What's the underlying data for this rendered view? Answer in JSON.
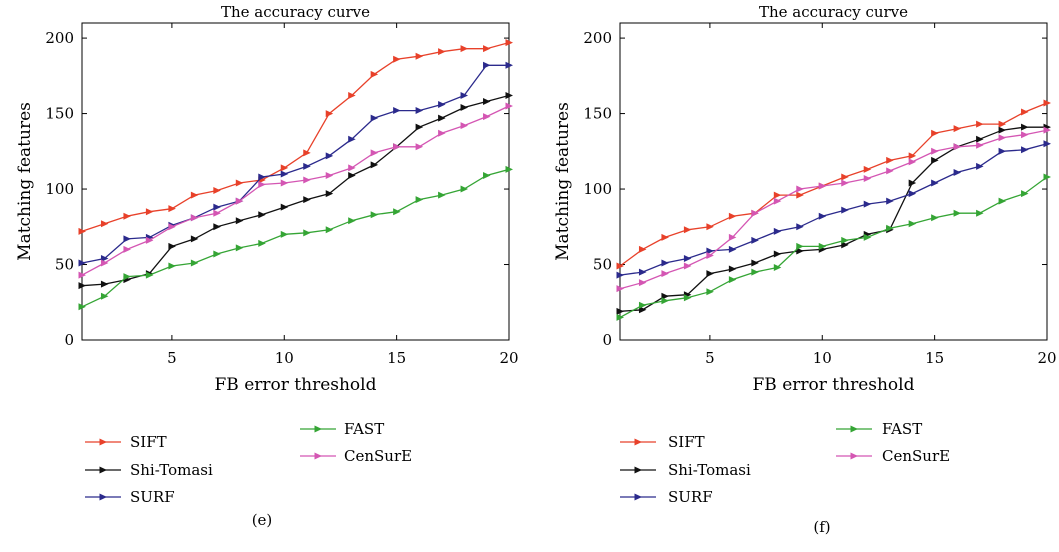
{
  "chart_data": [
    {
      "type": "line",
      "title": "The accuracy curve",
      "xlabel": "FB error threshold",
      "ylabel": "Matching features",
      "caption": "(e)",
      "xlim": [
        1,
        20
      ],
      "ylim": [
        0,
        210
      ],
      "xticks": [
        5,
        10,
        15,
        20
      ],
      "yticks": [
        0,
        50,
        100,
        150,
        200
      ],
      "legend": "below",
      "x": [
        1,
        2,
        3,
        4,
        5,
        6,
        7,
        8,
        9,
        10,
        11,
        12,
        13,
        14,
        15,
        16,
        17,
        18,
        19,
        20
      ],
      "series": [
        {
          "name": "SIFT",
          "color": "#e8412a",
          "values": [
            72,
            77,
            82,
            85,
            87,
            96,
            99,
            104,
            106,
            114,
            124,
            150,
            162,
            176,
            186,
            188,
            191,
            193,
            193,
            197
          ]
        },
        {
          "name": "Shi-Tomasi",
          "color": "#111111",
          "values": [
            36,
            37,
            40,
            44,
            62,
            67,
            75,
            79,
            83,
            88,
            93,
            97,
            109,
            116,
            128,
            141,
            147,
            154,
            158,
            162
          ]
        },
        {
          "name": "SURF",
          "color": "#2b2a8c",
          "values": [
            51,
            54,
            67,
            68,
            76,
            81,
            88,
            92,
            108,
            110,
            115,
            122,
            133,
            147,
            152,
            152,
            156,
            162,
            182,
            182
          ]
        },
        {
          "name": "FAST",
          "color": "#35a535",
          "values": [
            22,
            29,
            42,
            43,
            49,
            51,
            57,
            61,
            64,
            70,
            71,
            73,
            79,
            83,
            85,
            93,
            96,
            100,
            109,
            113
          ]
        },
        {
          "name": "CenSurE",
          "color": "#d456b3",
          "values": [
            43,
            51,
            60,
            66,
            75,
            81,
            84,
            92,
            103,
            104,
            106,
            109,
            114,
            124,
            128,
            128,
            137,
            142,
            148,
            155
          ]
        }
      ]
    },
    {
      "type": "line",
      "title": "The accuracy curve",
      "xlabel": "FB error threshold",
      "ylabel": "Matching features",
      "caption": "(f)",
      "xlim": [
        1,
        20
      ],
      "ylim": [
        0,
        210
      ],
      "xticks": [
        5,
        10,
        15,
        20
      ],
      "yticks": [
        0,
        50,
        100,
        150,
        200
      ],
      "legend": "below",
      "x": [
        1,
        2,
        3,
        4,
        5,
        6,
        7,
        8,
        9,
        10,
        11,
        12,
        13,
        14,
        15,
        16,
        17,
        18,
        19,
        20
      ],
      "series": [
        {
          "name": "SIFT",
          "color": "#e8412a",
          "values": [
            49,
            60,
            68,
            73,
            75,
            82,
            84,
            96,
            96,
            102,
            108,
            113,
            119,
            122,
            137,
            140,
            143,
            143,
            151,
            157
          ]
        },
        {
          "name": "Shi-Tomasi",
          "color": "#111111",
          "values": [
            19,
            20,
            29,
            30,
            44,
            47,
            51,
            57,
            59,
            60,
            63,
            70,
            73,
            104,
            119,
            128,
            133,
            139,
            141,
            141
          ]
        },
        {
          "name": "SURF",
          "color": "#2b2a8c",
          "values": [
            43,
            45,
            51,
            54,
            59,
            60,
            66,
            72,
            75,
            82,
            86,
            90,
            92,
            97,
            104,
            111,
            115,
            125,
            126,
            130
          ]
        },
        {
          "name": "FAST",
          "color": "#35a535",
          "values": [
            15,
            23,
            26,
            28,
            32,
            40,
            45,
            48,
            62,
            62,
            66,
            68,
            74,
            77,
            81,
            84,
            84,
            92,
            97,
            108
          ]
        },
        {
          "name": "CenSurE",
          "color": "#d456b3",
          "values": [
            34,
            38,
            44,
            49,
            56,
            68,
            84,
            92,
            100,
            102,
            104,
            107,
            112,
            118,
            125,
            128,
            129,
            134,
            136,
            139
          ]
        }
      ]
    }
  ]
}
